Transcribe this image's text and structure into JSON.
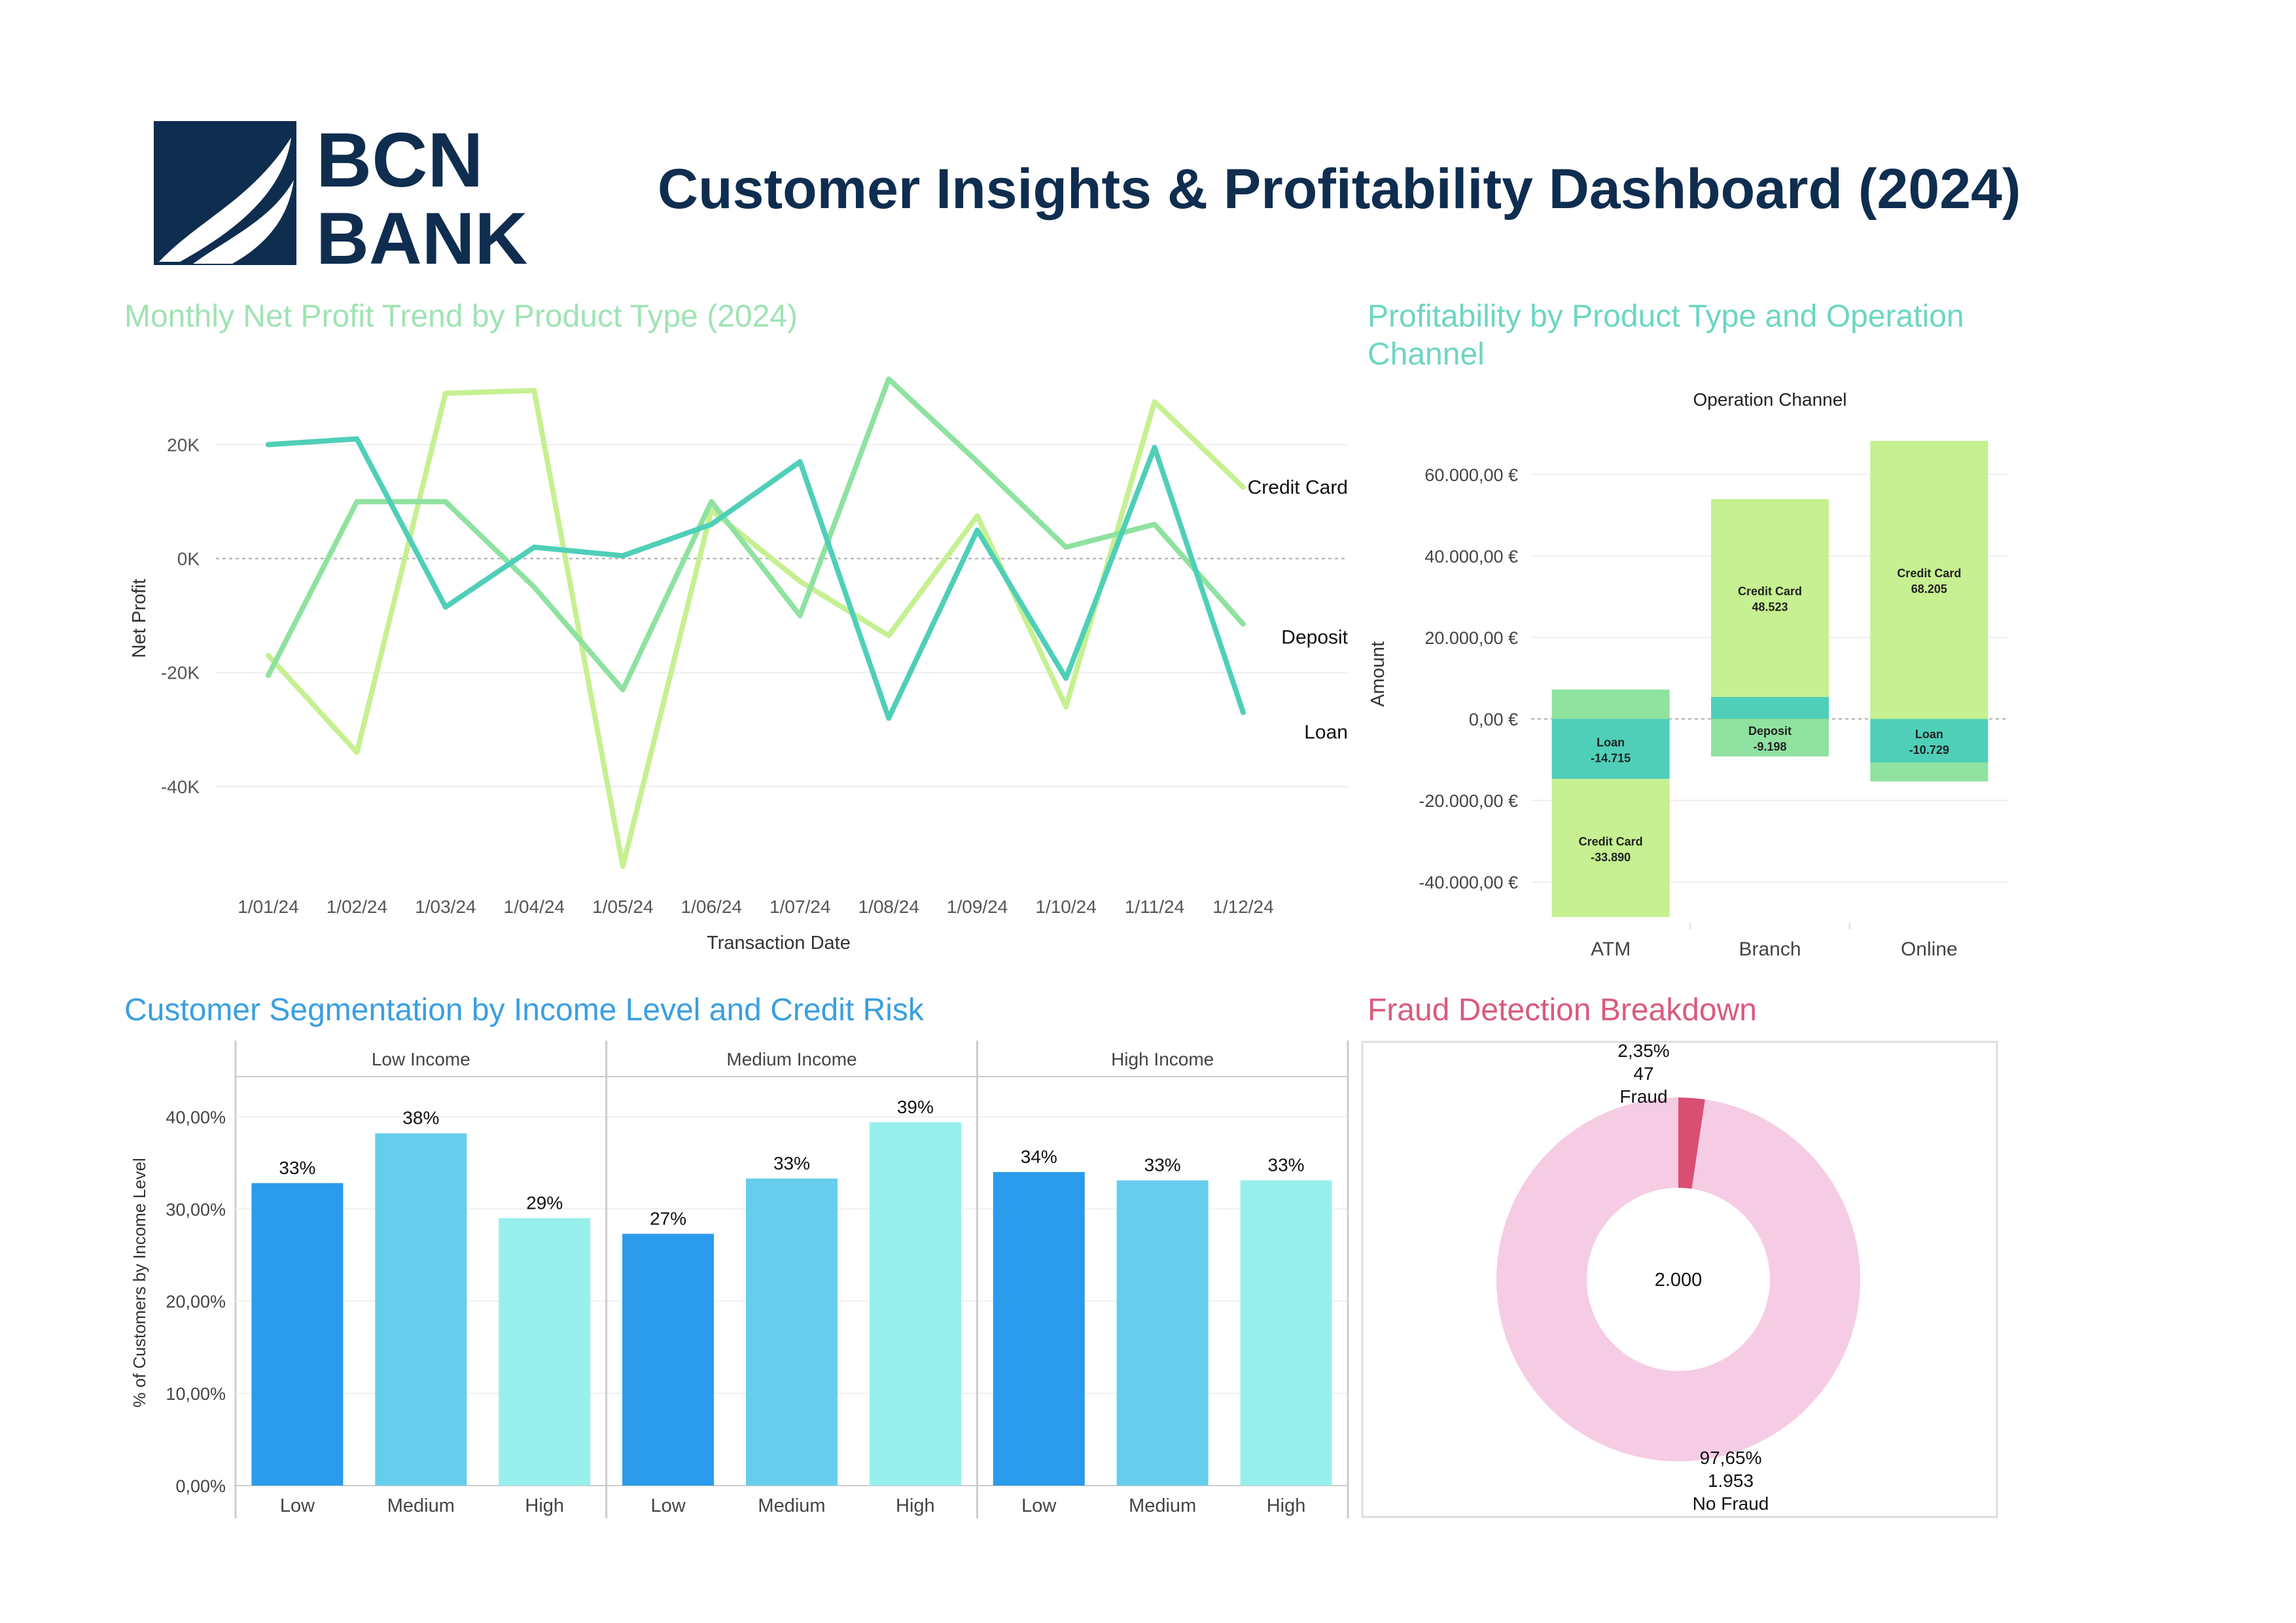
{
  "header": {
    "logo_line1": "BCN",
    "logo_line2": "BANK",
    "title": "Customer Insights & Profitability Dashboard (2024)"
  },
  "colors": {
    "navy": "#0f2d4f",
    "credit_card": "#c6f091",
    "deposit": "#8fe2a0",
    "loan": "#4fcfb8",
    "seg_low": "#2b9beb",
    "seg_medium": "#66cdec",
    "seg_high": "#97f0ec",
    "fraud": "#d94f73",
    "no_fraud": "#f5cce4",
    "title_trend": "#9fe3b4",
    "title_profit": "#6cd6c3",
    "title_seg": "#3a9fe0",
    "title_fraud": "#d95b7e"
  },
  "panels": {
    "trend_title": "Monthly Net Profit Trend by Product Type (2024)",
    "profit_title": "Profitability by Product Type and Operation Channel",
    "seg_title": "Customer Segmentation by Income Level and Credit Risk",
    "fraud_title": "Fraud Detection Breakdown"
  },
  "chart_data": [
    {
      "type": "line",
      "title": "Monthly Net Profit Trend by Product Type (2024)",
      "xlabel": "Transaction Date",
      "ylabel": "Net Profit",
      "x": [
        "1/01/24",
        "1/02/24",
        "1/03/24",
        "1/04/24",
        "1/05/24",
        "1/06/24",
        "1/07/24",
        "1/08/24",
        "1/09/24",
        "1/10/24",
        "1/11/24",
        "1/12/24"
      ],
      "y_ticks": [
        20000,
        0,
        -20000,
        -40000
      ],
      "y_tick_labels": [
        "20K",
        "0K",
        "-20K",
        "-40K"
      ],
      "ylim": [
        -57000,
        36000
      ],
      "grid": true,
      "series": [
        {
          "name": "Credit Card",
          "color": "#c6f091",
          "values": [
            -17000,
            -34000,
            29000,
            29500,
            -54000,
            8500,
            -4000,
            -13500,
            7500,
            -26000,
            27500,
            12500
          ]
        },
        {
          "name": "Deposit",
          "color": "#8fe2a0",
          "values": [
            -20500,
            10000,
            10000,
            -5000,
            -23000,
            10000,
            -10000,
            31500,
            17000,
            2000,
            6000,
            -11500
          ]
        },
        {
          "name": "Loan",
          "color": "#4fcfb8",
          "values": [
            20000,
            21000,
            -8500,
            2000,
            500,
            6000,
            17000,
            -28000,
            5000,
            -21000,
            19500,
            -27000
          ]
        }
      ]
    },
    {
      "type": "bar",
      "title": "Operation Channel",
      "xlabel": "",
      "ylabel": "Amount",
      "categories": [
        "ATM",
        "Branch",
        "Online"
      ],
      "y_ticks": [
        60000,
        40000,
        20000,
        0,
        -20000,
        -40000
      ],
      "y_tick_labels": [
        "60.000,00 €",
        "40.000,00 €",
        "20.000,00 €",
        "0,00 €",
        "-20.000,00 €",
        "-40.000,00 €"
      ],
      "ylim": [
        -50000,
        72000
      ],
      "segments": [
        {
          "category": "ATM",
          "product": "Deposit",
          "value": 7200,
          "label": ""
        },
        {
          "category": "ATM",
          "product": "Loan",
          "value": -14715,
          "label": "Loan",
          "value_label": "-14.715"
        },
        {
          "category": "ATM",
          "product": "Credit Card",
          "value": -33890,
          "label": "Credit Card",
          "value_label": "-33.890"
        },
        {
          "category": "Branch",
          "product": "Loan",
          "value": 5400,
          "label": ""
        },
        {
          "category": "Branch",
          "product": "Credit Card",
          "value": 48523,
          "label": "Credit Card",
          "value_label": "48.523"
        },
        {
          "category": "Branch",
          "product": "Deposit",
          "value": -9198,
          "label": "Deposit",
          "value_label": "-9.198"
        },
        {
          "category": "Online",
          "product": "Credit Card",
          "value": 68205,
          "label": "Credit Card",
          "value_label": "68.205"
        },
        {
          "category": "Online",
          "product": "Loan",
          "value": -10729,
          "label": "Loan",
          "value_label": "-10.729"
        },
        {
          "category": "Online",
          "product": "Deposit",
          "value": -4600,
          "label": ""
        }
      ]
    },
    {
      "type": "bar",
      "title": "Customer Segmentation by Income Level and Credit Risk",
      "ylabel": "% of Customers by Income Level",
      "groups": [
        "Low Income",
        "Medium Income",
        "High Income"
      ],
      "categories": [
        "Low",
        "Medium",
        "High"
      ],
      "y_ticks": [
        0,
        10,
        20,
        30,
        40
      ],
      "y_tick_labels": [
        "0,00%",
        "10,00%",
        "20,00%",
        "30,00%",
        "40,00%"
      ],
      "ylim": [
        0,
        44
      ],
      "series": [
        {
          "group": "Low Income",
          "values": [
            32.8,
            38.2,
            29.0
          ],
          "labels": [
            "33%",
            "38%",
            "29%"
          ]
        },
        {
          "group": "Medium Income",
          "values": [
            27.3,
            33.3,
            39.4
          ],
          "labels": [
            "27%",
            "33%",
            "39%"
          ]
        },
        {
          "group": "High Income",
          "values": [
            34.0,
            33.1,
            33.1
          ],
          "labels": [
            "34%",
            "33%",
            "33%"
          ]
        }
      ]
    },
    {
      "type": "pie",
      "title": "Fraud Detection Breakdown",
      "center_label": "2.000",
      "slices": [
        {
          "name": "Fraud",
          "value": 47,
          "percent_label": "2,35%",
          "count_label": "47",
          "color": "#d94f73"
        },
        {
          "name": "No Fraud",
          "value": 1953,
          "percent_label": "97,65%",
          "count_label": "1.953",
          "color": "#f5cce4"
        }
      ]
    }
  ]
}
